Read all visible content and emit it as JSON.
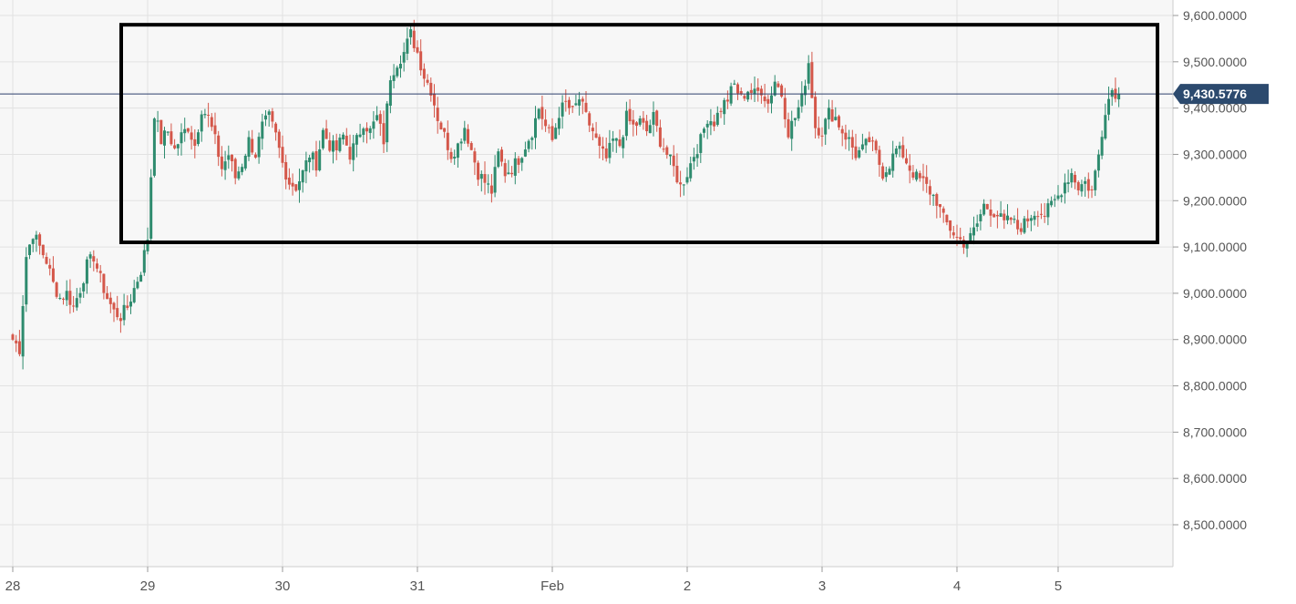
{
  "chart_data": {
    "type": "candlestick",
    "title": "",
    "xlabel": "",
    "ylabel": "",
    "ylim": [
      8420,
      9620
    ],
    "y_ticks": [
      "9,600.0000",
      "9,500.0000",
      "9,400.0000",
      "9,300.0000",
      "9,200.0000",
      "9,100.0000",
      "9,000.0000",
      "8,900.0000",
      "8,800.0000",
      "8,700.0000",
      "8,600.0000",
      "8,500.0000"
    ],
    "x_ticks": [
      "28",
      "29",
      "30",
      "31",
      "Feb",
      "2",
      "3",
      "4",
      "5"
    ],
    "x_tick_index": [
      0,
      40,
      80,
      120,
      160,
      200,
      240,
      280,
      310
    ],
    "current_price": 9430.5776,
    "current_price_label": "9,430.5776",
    "highlight_box": {
      "y_low": 9110,
      "y_high": 9580
    },
    "grid": true,
    "colors": {
      "up": "#2e8b6e",
      "down": "#d4574a",
      "price_line": "#2c3e6b",
      "price_tag": "#2c4a6e",
      "box": "#000000"
    },
    "close_path": [
      [
        0,
        8900
      ],
      [
        2,
        8880
      ],
      [
        4,
        9080
      ],
      [
        6,
        9130
      ],
      [
        8,
        9100
      ],
      [
        10,
        9070
      ],
      [
        12,
        9020
      ],
      [
        14,
        8990
      ],
      [
        16,
        9000
      ],
      [
        18,
        8970
      ],
      [
        20,
        9010
      ],
      [
        22,
        9060
      ],
      [
        24,
        9080
      ],
      [
        26,
        9030
      ],
      [
        28,
        8990
      ],
      [
        30,
        8960
      ],
      [
        32,
        8950
      ],
      [
        34,
        8970
      ],
      [
        36,
        9010
      ],
      [
        38,
        9050
      ],
      [
        40,
        9120
      ],
      [
        42,
        9390
      ],
      [
        44,
        9330
      ],
      [
        46,
        9350
      ],
      [
        48,
        9310
      ],
      [
        50,
        9340
      ],
      [
        52,
        9360
      ],
      [
        54,
        9320
      ],
      [
        56,
        9400
      ],
      [
        58,
        9380
      ],
      [
        60,
        9330
      ],
      [
        62,
        9270
      ],
      [
        64,
        9300
      ],
      [
        66,
        9250
      ],
      [
        68,
        9280
      ],
      [
        70,
        9330
      ],
      [
        72,
        9300
      ],
      [
        74,
        9360
      ],
      [
        76,
        9380
      ],
      [
        78,
        9340
      ],
      [
        80,
        9280
      ],
      [
        82,
        9240
      ],
      [
        84,
        9230
      ],
      [
        86,
        9260
      ],
      [
        88,
        9300
      ],
      [
        90,
        9280
      ],
      [
        92,
        9350
      ],
      [
        94,
        9320
      ],
      [
        96,
        9310
      ],
      [
        98,
        9340
      ],
      [
        100,
        9300
      ],
      [
        102,
        9330
      ],
      [
        104,
        9370
      ],
      [
        106,
        9350
      ],
      [
        108,
        9380
      ],
      [
        110,
        9330
      ],
      [
        112,
        9470
      ],
      [
        114,
        9500
      ],
      [
        116,
        9520
      ],
      [
        118,
        9560
      ],
      [
        120,
        9520
      ],
      [
        122,
        9470
      ],
      [
        124,
        9440
      ],
      [
        126,
        9380
      ],
      [
        128,
        9340
      ],
      [
        130,
        9300
      ],
      [
        132,
        9320
      ],
      [
        134,
        9360
      ],
      [
        136,
        9310
      ],
      [
        138,
        9260
      ],
      [
        140,
        9240
      ],
      [
        142,
        9220
      ],
      [
        144,
        9300
      ],
      [
        146,
        9260
      ],
      [
        148,
        9270
      ],
      [
        150,
        9290
      ],
      [
        152,
        9320
      ],
      [
        154,
        9350
      ],
      [
        156,
        9400
      ],
      [
        158,
        9360
      ],
      [
        160,
        9330
      ],
      [
        162,
        9390
      ],
      [
        164,
        9410
      ],
      [
        166,
        9390
      ],
      [
        168,
        9420
      ],
      [
        170,
        9380
      ],
      [
        172,
        9350
      ],
      [
        174,
        9310
      ],
      [
        176,
        9290
      ],
      [
        178,
        9330
      ],
      [
        180,
        9320
      ],
      [
        182,
        9380
      ],
      [
        184,
        9360
      ],
      [
        186,
        9370
      ],
      [
        188,
        9350
      ],
      [
        190,
        9380
      ],
      [
        192,
        9330
      ],
      [
        194,
        9300
      ],
      [
        196,
        9270
      ],
      [
        198,
        9230
      ],
      [
        200,
        9260
      ],
      [
        202,
        9300
      ],
      [
        204,
        9330
      ],
      [
        206,
        9380
      ],
      [
        208,
        9370
      ],
      [
        210,
        9400
      ],
      [
        212,
        9420
      ],
      [
        214,
        9450
      ],
      [
        216,
        9420
      ],
      [
        218,
        9440
      ],
      [
        220,
        9430
      ],
      [
        222,
        9440
      ],
      [
        224,
        9410
      ],
      [
        226,
        9460
      ],
      [
        228,
        9430
      ],
      [
        230,
        9350
      ],
      [
        232,
        9380
      ],
      [
        234,
        9420
      ],
      [
        236,
        9500
      ],
      [
        238,
        9360
      ],
      [
        240,
        9350
      ],
      [
        242,
        9390
      ],
      [
        244,
        9380
      ],
      [
        246,
        9350
      ],
      [
        248,
        9330
      ],
      [
        250,
        9300
      ],
      [
        252,
        9310
      ],
      [
        254,
        9330
      ],
      [
        256,
        9300
      ],
      [
        258,
        9260
      ],
      [
        260,
        9280
      ],
      [
        262,
        9310
      ],
      [
        264,
        9300
      ],
      [
        266,
        9270
      ],
      [
        268,
        9250
      ],
      [
        270,
        9240
      ],
      [
        272,
        9220
      ],
      [
        274,
        9200
      ],
      [
        276,
        9160
      ],
      [
        278,
        9140
      ],
      [
        280,
        9120
      ],
      [
        282,
        9110
      ],
      [
        284,
        9120
      ],
      [
        286,
        9150
      ],
      [
        288,
        9190
      ],
      [
        290,
        9180
      ],
      [
        292,
        9170
      ],
      [
        294,
        9150
      ],
      [
        296,
        9160
      ],
      [
        298,
        9140
      ],
      [
        300,
        9150
      ],
      [
        302,
        9170
      ],
      [
        304,
        9180
      ],
      [
        306,
        9170
      ],
      [
        308,
        9190
      ],
      [
        310,
        9210
      ],
      [
        312,
        9240
      ],
      [
        314,
        9260
      ],
      [
        316,
        9230
      ],
      [
        318,
        9240
      ],
      [
        320,
        9220
      ],
      [
        322,
        9300
      ],
      [
        324,
        9400
      ],
      [
        326,
        9440
      ],
      [
        328,
        9430
      ]
    ]
  }
}
